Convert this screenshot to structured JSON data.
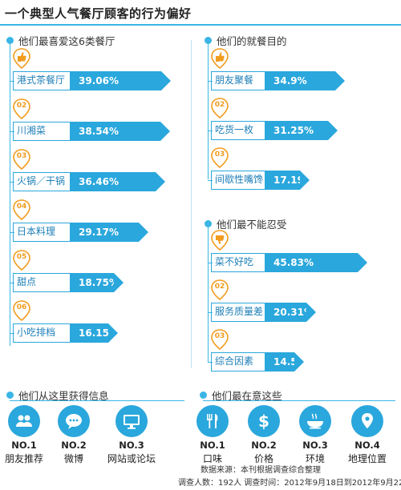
{
  "title": "一个典型人气餐厅顾客的行为偏好",
  "favorite": {
    "heading": "他们最喜爱这6类餐厅",
    "items": [
      {
        "rank": "",
        "label": "港式茶餐厅",
        "value": "39.06%",
        "pct": 39.06
      },
      {
        "rank": "02",
        "label": "川湘菜",
        "value": "38.54%",
        "pct": 38.54
      },
      {
        "rank": "03",
        "label": "火锅／干锅",
        "value": "36.46%",
        "pct": 36.46
      },
      {
        "rank": "04",
        "label": "日本料理",
        "value": "29.17%",
        "pct": 29.17
      },
      {
        "rank": "05",
        "label": "甜点",
        "value": "18.75%",
        "pct": 18.75
      },
      {
        "rank": "06",
        "label": "小吃排档",
        "value": "16.15%",
        "pct": 16.15
      }
    ]
  },
  "purpose": {
    "heading": "他们的就餐目的",
    "items": [
      {
        "rank": "",
        "label": "朋友聚餐",
        "value": "34.9%",
        "pct": 34.9
      },
      {
        "rank": "02",
        "label": "吃货一枚",
        "value": "31.25%",
        "pct": 31.25
      },
      {
        "rank": "03",
        "label": "间歇性嘴馋",
        "value": "17.19%",
        "pct": 17.19
      }
    ]
  },
  "intolerable": {
    "heading": "他们最不能忍受",
    "items": [
      {
        "rank": "",
        "label": "菜不好吃",
        "value": "45.83%",
        "pct": 45.83
      },
      {
        "rank": "02",
        "label": "服务质量差",
        "value": "20.31%",
        "pct": 20.31
      },
      {
        "rank": "03",
        "label": "综合因素",
        "value": "14.58%",
        "pct": 14.58
      }
    ]
  },
  "info": {
    "heading": "他们从这里获得信息",
    "items": [
      {
        "rank": "NO.1",
        "label": "朋友推荐",
        "icon": "people-icon"
      },
      {
        "rank": "NO.2",
        "label": "微博",
        "icon": "chat-bubble-icon"
      },
      {
        "rank": "NO.3",
        "label": "网站或论坛",
        "icon": "monitor-icon"
      }
    ]
  },
  "care": {
    "heading": "他们最在意这些",
    "items": [
      {
        "rank": "NO.1",
        "label": "口味",
        "icon": "utensils-icon"
      },
      {
        "rank": "NO.2",
        "label": "价格",
        "icon": "dollar-icon"
      },
      {
        "rank": "NO.3",
        "label": "环境",
        "icon": "bowl-icon"
      },
      {
        "rank": "NO.4",
        "label": "地理位置",
        "icon": "map-pin-icon"
      }
    ]
  },
  "source": {
    "line1": "数据来源：本刊根据调查综合整理",
    "line2": "调查人数：192人  调查时间：2012年9月18日到2012年9月22日"
  },
  "colors": {
    "accent": "#2aa7dc",
    "rank": "#f29c1f"
  }
}
